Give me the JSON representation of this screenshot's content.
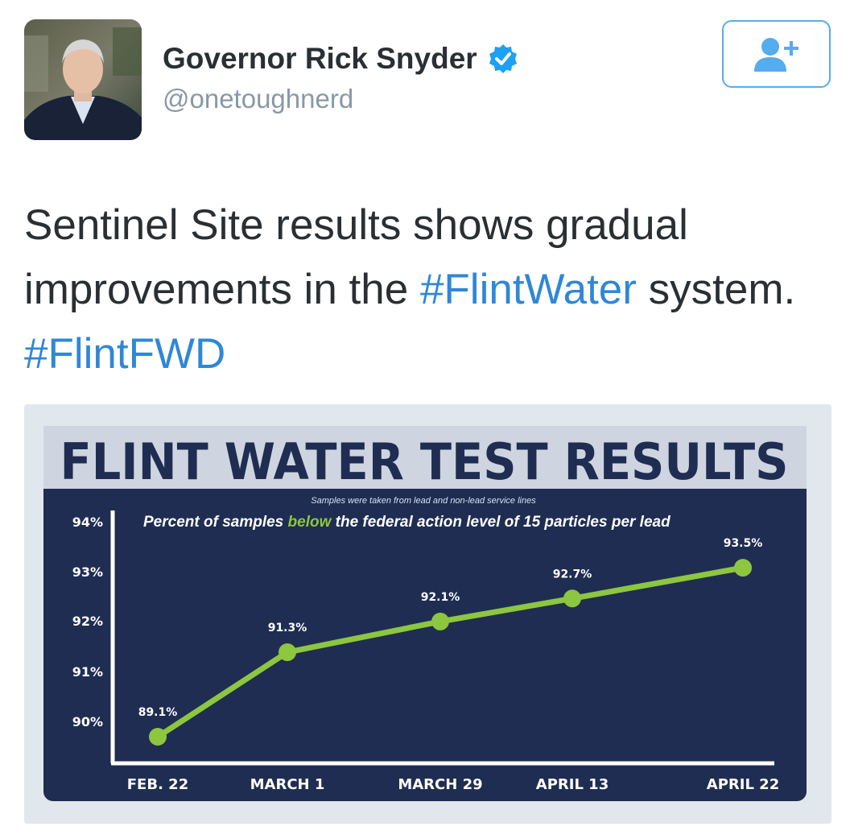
{
  "user": {
    "display_name": "Governor Rick Snyder",
    "handle": "@onetoughnerd",
    "verified": true
  },
  "follow_button": {
    "icon": "add-user-icon"
  },
  "tweet": {
    "text_part1": "Sentinel Site results shows gradual improvements in the ",
    "hashtag1": "#FlintWater",
    "text_part2": " system. ",
    "hashtag2": "#FlintFWD"
  },
  "colors": {
    "accent": "#55acee",
    "hashtag": "#2f87d8",
    "chart_bg": "#1f2d52",
    "title_bar": "#cfd5e0",
    "line": "#8dc63f"
  },
  "chart_data": {
    "type": "line",
    "title": "FLINT WATER TEST RESULTS",
    "subtitle": "Samples were taken from lead and non-lead service lines",
    "heading_before": "Percent of samples ",
    "heading_highlight": "below",
    "heading_after": " the federal action level of 15 particles per lead",
    "categories": [
      "FEB. 22",
      "MARCH 1",
      "MARCH 29",
      "APRIL 13",
      "APRIL 22"
    ],
    "values": [
      89.1,
      91.3,
      92.1,
      92.7,
      93.5
    ],
    "data_labels": [
      "89.1%",
      "91.3%",
      "92.1%",
      "92.7%",
      "93.5%"
    ],
    "yticks": [
      "94%",
      "93%",
      "92%",
      "91%",
      "90%"
    ],
    "grid": false
  }
}
